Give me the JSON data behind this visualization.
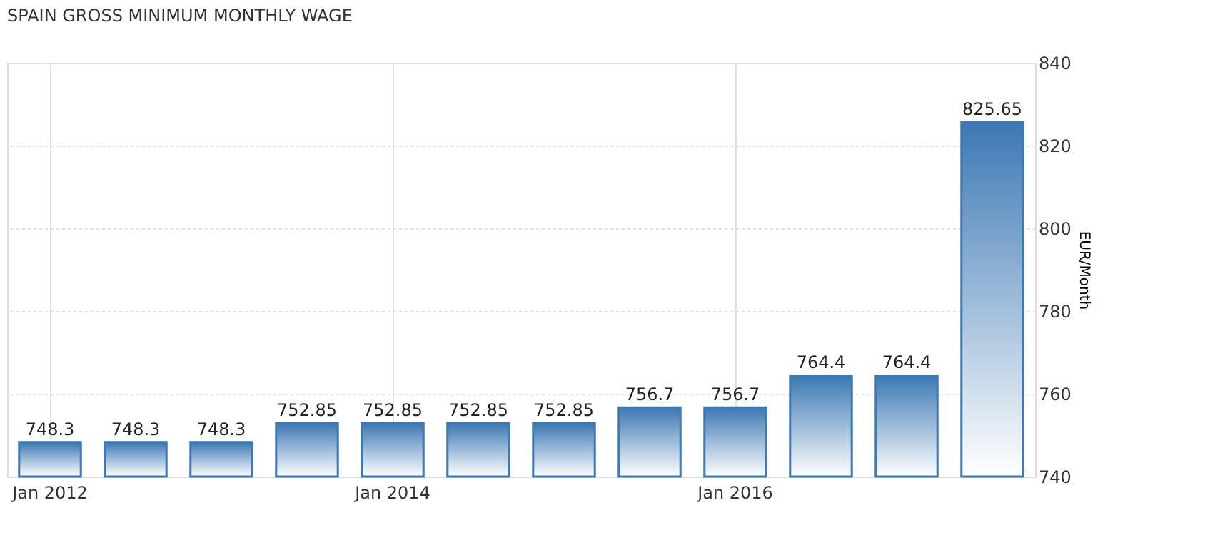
{
  "chart_data": {
    "type": "bar",
    "title": "SPAIN GROSS MINIMUM MONTHLY WAGE",
    "ylabel": "EUR/Month",
    "categories": [
      "Jan 2012",
      null,
      null,
      null,
      "Jan 2014",
      null,
      null,
      null,
      "Jan 2016",
      null,
      null,
      null
    ],
    "values": [
      748.3,
      748.3,
      748.3,
      752.85,
      752.85,
      752.85,
      752.85,
      756.7,
      756.7,
      764.4,
      764.4,
      825.65
    ],
    "color": "#3b78b4",
    "ylim": [
      740,
      840
    ],
    "yticks": [
      740,
      760,
      780,
      800,
      820,
      840
    ],
    "grid": true,
    "data_labels": true
  }
}
